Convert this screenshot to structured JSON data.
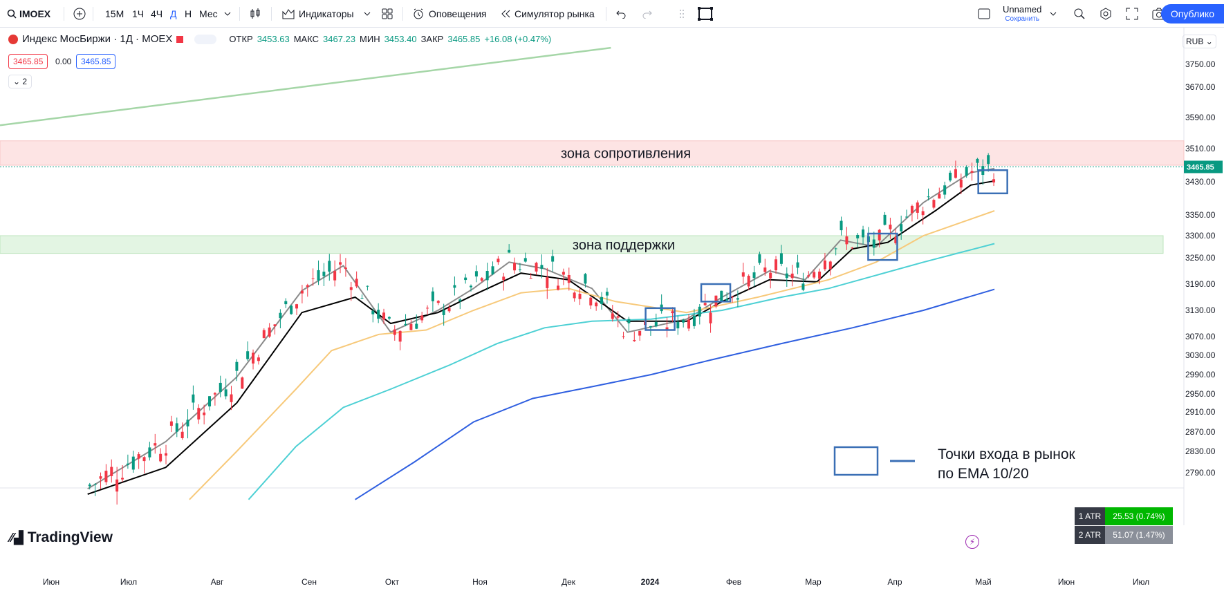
{
  "toolbar": {
    "symbol": "IMOEX",
    "intervals": [
      "15М",
      "1Ч",
      "4Ч",
      "Д",
      "Н",
      "Мес"
    ],
    "active_interval": "Д",
    "indicators_label": "Индикаторы",
    "alerts_label": "Оповещения",
    "replay_label": "Симулятор рынка",
    "layout_name": "Unnamed",
    "layout_save": "Сохранить",
    "publish_label": "Опублико"
  },
  "legend": {
    "title": "Индекс МосБиржи · 1Д · MOEX",
    "open_label": "ОТКР",
    "open": "3453.63",
    "high_label": "МАКС",
    "high": "3467.23",
    "low_label": "МИН",
    "low": "3453.40",
    "close_label": "ЗАКР",
    "close": "3465.85",
    "change": "+16.08 (+0.47%)",
    "bid": "3465.85",
    "spread": "0.00",
    "ask": "3465.85",
    "indicators_count": "2"
  },
  "currency": "RUB",
  "watermark": "TradingView",
  "atr": [
    {
      "label": "1 ATR",
      "value": "25.53 (0.74%)",
      "color": "#00b700"
    },
    {
      "label": "2 ATR",
      "value": "51.07 (1.47%)",
      "color": "#8a8f99"
    }
  ],
  "chart_data": {
    "type": "candlestick",
    "price_axis": [
      "3750.00",
      "3670.00",
      "3590.00",
      "3510.00",
      "3430.00",
      "3350.00",
      "3300.00",
      "3250.00",
      "3190.00",
      "3130.00",
      "3070.00",
      "3030.00",
      "2990.00",
      "2950.00",
      "2910.00",
      "2870.00",
      "2830.00",
      "2790.00"
    ],
    "time_axis": [
      "Июн",
      "Июл",
      "Авг",
      "Сен",
      "Окт",
      "Ноя",
      "Дек",
      "2024",
      "Фев",
      "Мар",
      "Апр",
      "Май",
      "Июн",
      "Июл"
    ],
    "last_price": "3465.85",
    "colors": {
      "up": "#089981",
      "down": "#f23645",
      "ema10": "#8a8a8a",
      "ema20": "#000000",
      "ema50": "#f7c97a",
      "ema100": "#4dd0d4",
      "ema200": "#2f5fe0",
      "resistance": "#fde4e4",
      "support": "#e3f5e3",
      "trend": "#a5d6a7"
    },
    "zones": [
      {
        "label": "зона сопротивления",
        "from": 3470,
        "to": 3530
      },
      {
        "label": "зона поддержки",
        "from": 3260,
        "to": 3300
      }
    ],
    "legend_box_label": "Точки входа в рынок",
    "legend_box_label2": "по EMA 10/20",
    "entry_points": [
      {
        "time": 0.557,
        "low": 3085,
        "high": 3135
      },
      {
        "time": 0.604,
        "low": 3150,
        "high": 3190
      },
      {
        "time": 0.745,
        "low": 3245,
        "high": 3305
      },
      {
        "time": 0.838,
        "low": 3402,
        "high": 3458
      }
    ],
    "trend_line": [
      {
        "t": 0.0,
        "p": 3570
      },
      {
        "t": 0.516,
        "p": 3808
      }
    ],
    "ema_lines": [
      {
        "name": "EMA 10",
        "key": "ema10",
        "points": [
          [
            0.074,
            2760
          ],
          [
            0.14,
            2850
          ],
          [
            0.2,
            2985
          ],
          [
            0.255,
            3175
          ],
          [
            0.29,
            3232
          ],
          [
            0.33,
            3080
          ],
          [
            0.37,
            3130
          ],
          [
            0.4,
            3180
          ],
          [
            0.43,
            3240
          ],
          [
            0.46,
            3225
          ],
          [
            0.5,
            3180
          ],
          [
            0.53,
            3080
          ],
          [
            0.58,
            3110
          ],
          [
            0.61,
            3160
          ],
          [
            0.65,
            3220
          ],
          [
            0.68,
            3200
          ],
          [
            0.71,
            3290
          ],
          [
            0.74,
            3275
          ],
          [
            0.78,
            3380
          ],
          [
            0.82,
            3452
          ],
          [
            0.84,
            3462
          ]
        ]
      },
      {
        "name": "EMA 20",
        "key": "ema20",
        "points": [
          [
            0.074,
            2750
          ],
          [
            0.14,
            2800
          ],
          [
            0.2,
            2930
          ],
          [
            0.255,
            3125
          ],
          [
            0.3,
            3160
          ],
          [
            0.33,
            3100
          ],
          [
            0.37,
            3125
          ],
          [
            0.4,
            3165
          ],
          [
            0.44,
            3215
          ],
          [
            0.48,
            3200
          ],
          [
            0.53,
            3105
          ],
          [
            0.58,
            3105
          ],
          [
            0.61,
            3150
          ],
          [
            0.65,
            3200
          ],
          [
            0.69,
            3195
          ],
          [
            0.72,
            3270
          ],
          [
            0.75,
            3285
          ],
          [
            0.79,
            3360
          ],
          [
            0.82,
            3422
          ],
          [
            0.84,
            3432
          ]
        ]
      },
      {
        "name": "EMA 50",
        "key": "ema50",
        "points": [
          [
            0.16,
            2740
          ],
          [
            0.2,
            2830
          ],
          [
            0.25,
            2960
          ],
          [
            0.28,
            3040
          ],
          [
            0.32,
            3075
          ],
          [
            0.36,
            3085
          ],
          [
            0.4,
            3130
          ],
          [
            0.44,
            3170
          ],
          [
            0.48,
            3180
          ],
          [
            0.52,
            3150
          ],
          [
            0.58,
            3125
          ],
          [
            0.64,
            3160
          ],
          [
            0.7,
            3200
          ],
          [
            0.74,
            3240
          ],
          [
            0.78,
            3300
          ],
          [
            0.84,
            3360
          ]
        ]
      },
      {
        "name": "EMA 100",
        "key": "ema100",
        "points": [
          [
            0.21,
            2740
          ],
          [
            0.25,
            2840
          ],
          [
            0.29,
            2920
          ],
          [
            0.33,
            2960
          ],
          [
            0.38,
            3010
          ],
          [
            0.42,
            3055
          ],
          [
            0.46,
            3090
          ],
          [
            0.5,
            3105
          ],
          [
            0.55,
            3110
          ],
          [
            0.61,
            3130
          ],
          [
            0.66,
            3160
          ],
          [
            0.7,
            3180
          ],
          [
            0.74,
            3210
          ],
          [
            0.78,
            3240
          ],
          [
            0.84,
            3282
          ]
        ]
      },
      {
        "name": "EMA 200",
        "key": "ema200",
        "points": [
          [
            0.3,
            2740
          ],
          [
            0.35,
            2810
          ],
          [
            0.4,
            2890
          ],
          [
            0.45,
            2940
          ],
          [
            0.5,
            2965
          ],
          [
            0.55,
            2990
          ],
          [
            0.6,
            3020
          ],
          [
            0.66,
            3055
          ],
          [
            0.72,
            3090
          ],
          [
            0.78,
            3130
          ],
          [
            0.84,
            3178
          ]
        ]
      }
    ]
  }
}
